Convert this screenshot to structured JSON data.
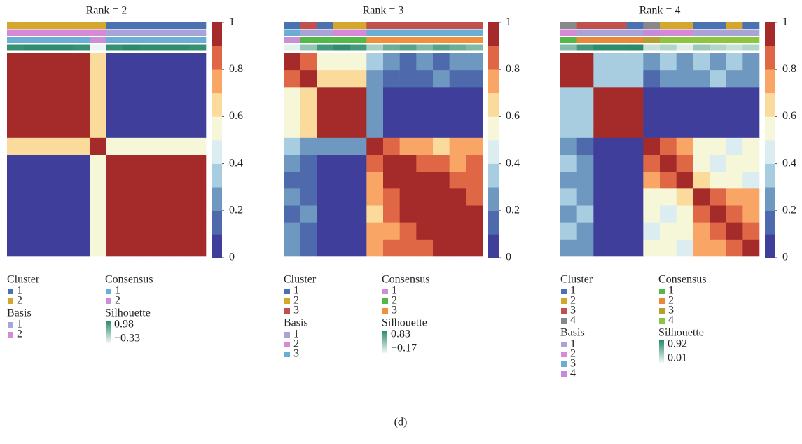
{
  "caption": "(d)",
  "chart_data": [
    {
      "type": "heatmap",
      "title": "Rank = 2",
      "zlim": [
        0,
        1
      ],
      "zticks": [
        0,
        0.2,
        0.4,
        0.6,
        0.8,
        1
      ],
      "colors": [
        "#3f3f9b",
        "#4e6aac",
        "#6e98c0",
        "#a8cde0",
        "#dcedf2",
        "#f6f7d8",
        "#fbdb9c",
        "#f8a566",
        "#e06745",
        "#a52a2a"
      ],
      "matrix": [
        [
          1,
          1,
          1,
          1,
          1,
          0.6,
          0,
          0,
          0,
          0,
          0,
          0
        ],
        [
          1,
          1,
          1,
          1,
          1,
          0.6,
          0,
          0,
          0,
          0,
          0,
          0
        ],
        [
          1,
          1,
          1,
          1,
          1,
          0.6,
          0,
          0,
          0,
          0,
          0,
          0
        ],
        [
          1,
          1,
          1,
          1,
          1,
          0.6,
          0,
          0,
          0,
          0,
          0,
          0
        ],
        [
          1,
          1,
          1,
          1,
          1,
          0.6,
          0,
          0,
          0,
          0,
          0,
          0
        ],
        [
          0.6,
          0.6,
          0.6,
          0.6,
          0.6,
          1,
          0.5,
          0.5,
          0.5,
          0.5,
          0.5,
          0.5
        ],
        [
          0,
          0,
          0,
          0,
          0,
          0.5,
          1,
          1,
          1,
          1,
          1,
          1
        ],
        [
          0,
          0,
          0,
          0,
          0,
          0.5,
          1,
          1,
          1,
          1,
          1,
          1
        ],
        [
          0,
          0,
          0,
          0,
          0,
          0.5,
          1,
          1,
          1,
          1,
          1,
          1
        ],
        [
          0,
          0,
          0,
          0,
          0,
          0.5,
          1,
          1,
          1,
          1,
          1,
          1
        ],
        [
          0,
          0,
          0,
          0,
          0,
          0.5,
          1,
          1,
          1,
          1,
          1,
          1
        ],
        [
          0,
          0,
          0,
          0,
          0,
          0.5,
          1,
          1,
          1,
          1,
          1,
          1
        ]
      ],
      "tracks": [
        {
          "name": "Cluster",
          "categories": [
            1,
            2
          ],
          "colors": [
            "#4a72b0",
            "#d4a72c"
          ],
          "values": [
            2,
            2,
            2,
            2,
            2,
            2,
            1,
            1,
            1,
            1,
            1,
            1
          ]
        },
        {
          "name": "Basis",
          "categories": [
            1,
            2
          ],
          "colors": [
            "#a8a4d8",
            "#d689d6"
          ],
          "values": [
            2,
            2,
            2,
            2,
            2,
            2,
            1,
            1,
            1,
            1,
            1,
            1
          ]
        },
        {
          "name": "Consensus",
          "categories": [
            1,
            2
          ],
          "colors": [
            "#6aaed6",
            "#c990d8"
          ],
          "values": [
            1,
            1,
            1,
            1,
            1,
            2,
            1,
            1,
            1,
            1,
            1,
            1
          ]
        },
        {
          "name": "Silhouette",
          "legend_ticks": [
            0.98,
            {
              "value": -0.33,
              "label": "−0.33"
            }
          ],
          "colors": [
            "#f2f8f5",
            "#2a8a6a"
          ],
          "values": [
            0.9,
            0.95,
            0.95,
            0.95,
            0.9,
            -0.3,
            0.9,
            0.98,
            0.95,
            0.95,
            0.95,
            0.9
          ]
        }
      ]
    },
    {
      "type": "heatmap",
      "title": "Rank = 3",
      "zlim": [
        0,
        1
      ],
      "zticks": [
        0,
        0.2,
        0.4,
        0.6,
        0.8,
        1
      ],
      "colors": [
        "#3f3f9b",
        "#4e6aac",
        "#6e98c0",
        "#a8cde0",
        "#dcedf2",
        "#f6f7d8",
        "#fbdb9c",
        "#f8a566",
        "#e06745",
        "#a52a2a"
      ],
      "matrix": [
        [
          1,
          0.8,
          0.5,
          0.5,
          0.5,
          0.3,
          0.2,
          0.1,
          0.2,
          0.1,
          0.2,
          0.2
        ],
        [
          0.8,
          1,
          0.6,
          0.6,
          0.6,
          0.2,
          0.1,
          0.1,
          0.1,
          0.2,
          0.1,
          0.1
        ],
        [
          0.5,
          0.6,
          1,
          1,
          1,
          0.2,
          0,
          0,
          0,
          0,
          0,
          0
        ],
        [
          0.5,
          0.6,
          1,
          1,
          1,
          0.2,
          0,
          0,
          0,
          0,
          0,
          0
        ],
        [
          0.5,
          0.6,
          1,
          1,
          1,
          0.2,
          0,
          0,
          0,
          0,
          0,
          0
        ],
        [
          0.3,
          0.2,
          0.2,
          0.2,
          0.2,
          1,
          0.8,
          0.7,
          0.7,
          0.6,
          0.7,
          0.7
        ],
        [
          0.2,
          0.1,
          0,
          0,
          0,
          0.8,
          1,
          0.9,
          0.8,
          0.8,
          0.7,
          0.8
        ],
        [
          0.1,
          0.1,
          0,
          0,
          0,
          0.7,
          0.9,
          1,
          0.9,
          0.9,
          0.8,
          0.8
        ],
        [
          0.2,
          0.1,
          0,
          0,
          0,
          0.7,
          0.8,
          0.9,
          1,
          0.9,
          0.9,
          0.8
        ],
        [
          0.1,
          0.2,
          0,
          0,
          0,
          0.6,
          0.8,
          0.9,
          0.9,
          1,
          0.9,
          0.9
        ],
        [
          0.2,
          0.1,
          0,
          0,
          0,
          0.7,
          0.7,
          0.8,
          0.9,
          0.9,
          1,
          0.9
        ],
        [
          0.2,
          0.1,
          0,
          0,
          0,
          0.7,
          0.8,
          0.8,
          0.8,
          0.9,
          0.9,
          1
        ]
      ],
      "tracks": [
        {
          "name": "Cluster",
          "categories": [
            1,
            2,
            3
          ],
          "colors": [
            "#4a72b0",
            "#d4a72c",
            "#c0504d"
          ],
          "values": [
            1,
            3,
            1,
            2,
            2,
            3,
            3,
            3,
            3,
            3,
            3,
            3
          ]
        },
        {
          "name": "Basis",
          "categories": [
            1,
            2,
            3
          ],
          "colors": [
            "#a8a4d8",
            "#d689d6",
            "#6aaed6"
          ],
          "values": [
            3,
            1,
            1,
            2,
            2,
            3,
            3,
            3,
            3,
            3,
            3,
            3
          ]
        },
        {
          "name": "Consensus",
          "categories": [
            1,
            2,
            3
          ],
          "colors": [
            "#c990d8",
            "#52b847",
            "#f0903a"
          ],
          "values": [
            1,
            2,
            2,
            2,
            2,
            3,
            3,
            3,
            3,
            3,
            3,
            3
          ]
        },
        {
          "name": "Silhouette",
          "legend_ticks": [
            0.83,
            {
              "value": -0.17,
              "label": "−0.17"
            }
          ],
          "colors": [
            "#f2f8f5",
            "#2a8a6a"
          ],
          "values": [
            -0.1,
            0.3,
            0.7,
            0.8,
            0.7,
            0.2,
            0.5,
            0.6,
            0.4,
            0.6,
            0.5,
            0.4
          ]
        }
      ]
    },
    {
      "type": "heatmap",
      "title": "Rank = 4",
      "zlim": [
        0,
        1
      ],
      "zticks": [
        0,
        0.2,
        0.4,
        0.6,
        0.8,
        1
      ],
      "colors": [
        "#3f3f9b",
        "#4e6aac",
        "#6e98c0",
        "#a8cde0",
        "#dcedf2",
        "#f6f7d8",
        "#fbdb9c",
        "#f8a566",
        "#e06745",
        "#a52a2a"
      ],
      "matrix": [
        [
          1,
          0.9,
          0.3,
          0.3,
          0.3,
          0.2,
          0.3,
          0.2,
          0.3,
          0.2,
          0.3,
          0.2
        ],
        [
          0.9,
          1,
          0.3,
          0.3,
          0.3,
          0.1,
          0.2,
          0.2,
          0.2,
          0.3,
          0.2,
          0.2
        ],
        [
          0.3,
          0.3,
          1,
          1,
          1,
          0,
          0,
          0,
          0,
          0,
          0,
          0
        ],
        [
          0.3,
          0.3,
          1,
          1,
          1,
          0,
          0,
          0,
          0,
          0,
          0,
          0
        ],
        [
          0.3,
          0.3,
          1,
          1,
          1,
          0,
          0,
          0,
          0,
          0,
          0,
          0
        ],
        [
          0.2,
          0.1,
          0,
          0,
          0,
          1,
          0.8,
          0.7,
          0.5,
          0.5,
          0.4,
          0.5
        ],
        [
          0.3,
          0.2,
          0,
          0,
          0,
          0.8,
          1,
          0.8,
          0.5,
          0.4,
          0.5,
          0.5
        ],
        [
          0.2,
          0.2,
          0,
          0,
          0,
          0.7,
          0.8,
          1,
          0.6,
          0.5,
          0.5,
          0.4
        ],
        [
          0.3,
          0.2,
          0,
          0,
          0,
          0.5,
          0.5,
          0.6,
          1,
          0.8,
          0.7,
          0.7
        ],
        [
          0.2,
          0.3,
          0,
          0,
          0,
          0.5,
          0.4,
          0.5,
          0.8,
          1,
          0.8,
          0.7
        ],
        [
          0.3,
          0.2,
          0,
          0,
          0,
          0.4,
          0.5,
          0.5,
          0.7,
          0.8,
          1,
          0.8
        ],
        [
          0.2,
          0.2,
          0,
          0,
          0,
          0.5,
          0.5,
          0.4,
          0.7,
          0.7,
          0.8,
          1
        ]
      ],
      "tracks": [
        {
          "name": "Cluster",
          "categories": [
            1,
            2,
            3,
            4
          ],
          "colors": [
            "#4a72b0",
            "#d4a72c",
            "#c0504d",
            "#888888"
          ],
          "values": [
            4,
            3,
            3,
            3,
            1,
            4,
            2,
            2,
            1,
            1,
            2,
            1
          ]
        },
        {
          "name": "Basis",
          "categories": [
            1,
            2,
            3,
            4
          ],
          "colors": [
            "#a8a4d8",
            "#d689d6",
            "#6aaed6",
            "#c58ad8"
          ],
          "values": [
            2,
            1,
            1,
            1,
            1,
            4,
            2,
            2,
            1,
            1,
            1,
            1
          ]
        },
        {
          "name": "Consensus",
          "categories": [
            1,
            2,
            3,
            4
          ],
          "colors": [
            "#52b847",
            "#e8893a",
            "#b8a030",
            "#8cc63f"
          ],
          "values": [
            1,
            2,
            2,
            2,
            2,
            3,
            4,
            4,
            4,
            4,
            4,
            4
          ]
        },
        {
          "name": "Silhouette",
          "legend_ticks": [
            0.92,
            0.01
          ],
          "colors": [
            "#f2f8f5",
            "#2a8a6a"
          ],
          "values": [
            0.5,
            0.8,
            0.9,
            0.9,
            0.92,
            0.2,
            0.3,
            0.1,
            0.4,
            0.3,
            0.2,
            0.3
          ]
        }
      ]
    }
  ]
}
